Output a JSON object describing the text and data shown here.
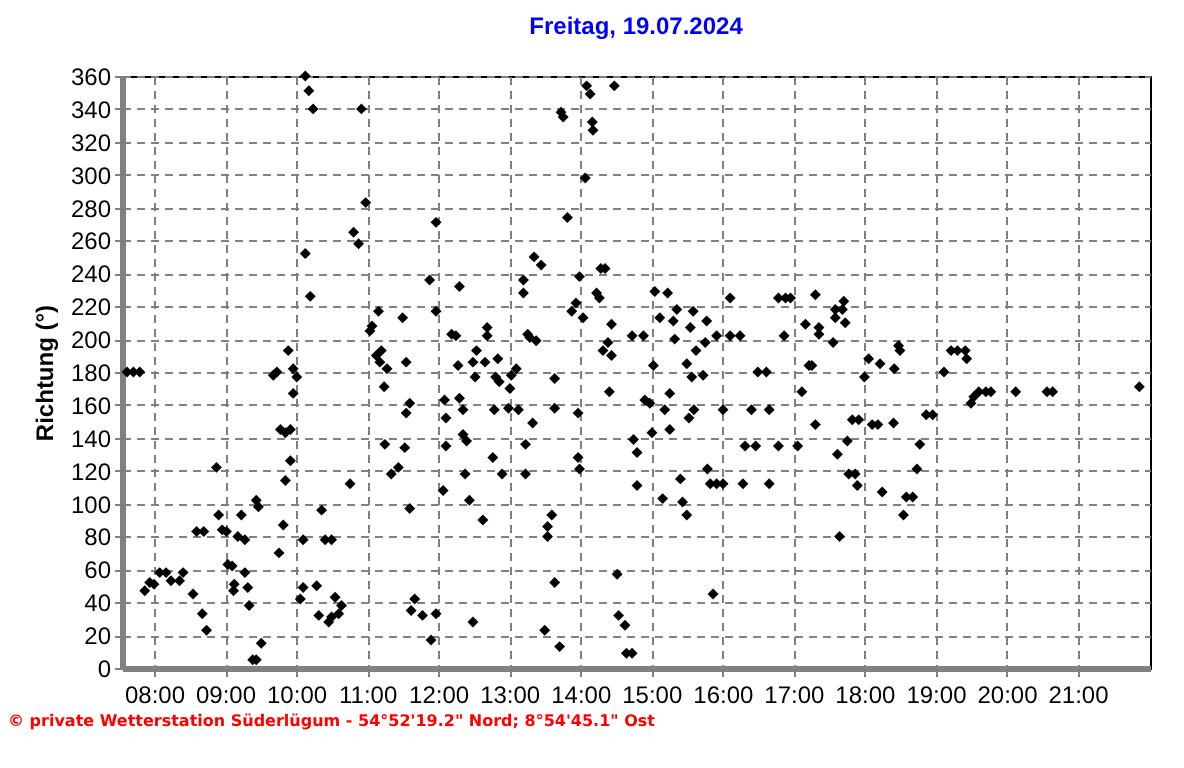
{
  "chart_data": {
    "type": "scatter",
    "title": "Freitag, 19.07.2024",
    "ylabel": "Richtung  (°)",
    "annotations": [
      "© private Wetterstation Süderlügum  -  54°52'19.2\" Nord; 8°54'45.1\" Ost"
    ],
    "marker": "diamond",
    "grid": true,
    "xlim": [
      7.55,
      22.02
    ],
    "ylim": [
      0,
      360
    ],
    "xticks": [
      {
        "value": 8,
        "label": "08:00"
      },
      {
        "value": 9,
        "label": "09:00"
      },
      {
        "value": 10,
        "label": "10:00"
      },
      {
        "value": 11,
        "label": "11:00"
      },
      {
        "value": 12,
        "label": "12:00"
      },
      {
        "value": 13,
        "label": "13:00"
      },
      {
        "value": 14,
        "label": "14:00"
      },
      {
        "value": 15,
        "label": "15:00"
      },
      {
        "value": 16,
        "label": "16:00"
      },
      {
        "value": 17,
        "label": "17:00"
      },
      {
        "value": 18,
        "label": "18:00"
      },
      {
        "value": 19,
        "label": "19:00"
      },
      {
        "value": 20,
        "label": "20:00"
      },
      {
        "value": 21,
        "label": "21:00"
      }
    ],
    "yticks": [
      0,
      20,
      40,
      60,
      80,
      100,
      120,
      140,
      160,
      180,
      200,
      220,
      240,
      260,
      280,
      300,
      320,
      340,
      360
    ],
    "series": [
      {
        "color": "#000000",
        "x": [
          7.62,
          7.71,
          7.8,
          7.87,
          7.94,
          8.0,
          8.08,
          8.17,
          8.24,
          8.36,
          8.41,
          8.55,
          8.6,
          8.7,
          8.68,
          8.74,
          8.88,
          8.91,
          8.96,
          9.02,
          9.04,
          9.1,
          9.12,
          9.13,
          9.18,
          9.23,
          9.28,
          9.28,
          9.32,
          9.34,
          9.39,
          9.44,
          9.44,
          9.47,
          9.51,
          9.68,
          9.73,
          9.76,
          9.78,
          9.85,
          9.82,
          9.85,
          9.89,
          9.92,
          9.92,
          9.96,
          9.96,
          10.01,
          10.06,
          10.1,
          10.1,
          10.13,
          10.18,
          10.13,
          10.2,
          10.24,
          10.29,
          10.32,
          10.36,
          10.41,
          10.5,
          10.46,
          10.5,
          10.55,
          10.6,
          10.64,
          10.76,
          10.81,
          10.88,
          10.92,
          10.98,
          11.04,
          11.07,
          11.13,
          11.16,
          11.18,
          11.2,
          11.28,
          11.24,
          11.25,
          11.34,
          11.44,
          11.53,
          11.55,
          11.6,
          11.5,
          11.55,
          11.6,
          11.67,
          11.62,
          11.78,
          11.97,
          11.9,
          11.88,
          11.97,
          11.97,
          12.09,
          12.11,
          12.11,
          12.07,
          12.19,
          12.25,
          12.3,
          12.28,
          12.3,
          12.35,
          12.35,
          12.4,
          12.38,
          12.44,
          12.49,
          12.49,
          12.54,
          12.52,
          12.63,
          12.66,
          12.69,
          12.69,
          12.77,
          12.79,
          12.81,
          12.84,
          12.86,
          12.9,
          12.99,
          13.01,
          13.03,
          13.1,
          13.13,
          13.2,
          13.2,
          13.23,
          13.23,
          13.26,
          13.29,
          13.33,
          13.35,
          13.38,
          13.45,
          13.5,
          13.54,
          13.54,
          13.6,
          13.64,
          13.64,
          13.64,
          13.71,
          13.73,
          13.76,
          13.82,
          13.88,
          13.94,
          13.97,
          13.97,
          13.99,
          13.99,
          14.04,
          14.07,
          14.09,
          14.14,
          14.17,
          14.18,
          14.23,
          14.27,
          14.29,
          14.35,
          14.32,
          14.39,
          14.41,
          14.44,
          14.44,
          14.48,
          14.52,
          14.54,
          14.63,
          14.65,
          14.73,
          14.73,
          14.8,
          14.75,
          14.8,
          14.89,
          14.91,
          14.98,
          15.03,
          15.01,
          15.05,
          15.12,
          15.16,
          15.19,
          15.23,
          15.26,
          15.26,
          15.31,
          15.33,
          15.36,
          15.41,
          15.44,
          15.5,
          15.5,
          15.53,
          15.55,
          15.57,
          15.59,
          15.6,
          15.63,
          15.73,
          15.76,
          15.78,
          15.79,
          15.83,
          15.87,
          15.92,
          15.92,
          16.01,
          16.01,
          16.11,
          16.11,
          16.25,
          16.29,
          16.32,
          16.41,
          16.47,
          16.5,
          16.62,
          16.66,
          16.66,
          16.79,
          16.79,
          16.87,
          16.89,
          16.96,
          17.06,
          17.12,
          17.17,
          17.22,
          17.26,
          17.31,
          17.31,
          17.36,
          17.36,
          17.56,
          17.59,
          17.59,
          17.62,
          17.65,
          17.69,
          17.71,
          17.73,
          17.76,
          17.78,
          17.83,
          17.87,
          17.92,
          17.9,
          18.0,
          18.06,
          18.11,
          18.19,
          18.22,
          18.25,
          18.41,
          18.42,
          18.48,
          18.5,
          18.55,
          18.59,
          18.68,
          18.74,
          18.78,
          18.87,
          18.96,
          19.12,
          19.22,
          19.31,
          19.42,
          19.44,
          19.5,
          19.54,
          19.61,
          19.71,
          19.78,
          20.13,
          20.57,
          20.65,
          21.87
        ],
        "values": [
          180,
          180,
          180,
          47,
          52,
          51,
          58,
          58,
          53,
          53,
          58,
          45,
          83,
          83,
          33,
          23,
          122,
          93,
          84,
          83,
          63,
          62,
          47,
          51,
          80,
          93,
          78,
          58,
          49,
          38,
          5,
          5,
          102,
          98,
          15,
          178,
          180,
          70,
          145,
          143,
          87,
          114,
          193,
          145,
          126,
          167,
          182,
          177,
          42,
          78,
          49,
          360,
          351,
          252,
          226,
          340,
          50,
          32,
          96,
          78,
          78,
          28,
          31,
          43,
          33,
          38,
          112,
          265,
          258,
          340,
          283,
          205,
          208,
          190,
          217,
          186,
          193,
          182,
          171,
          136,
          118,
          122,
          134,
          155,
          97,
          213,
          186,
          161,
          42,
          35,
          32,
          33,
          17,
          236,
          271,
          217,
          163,
          152,
          135,
          108,
          203,
          202,
          232,
          184,
          164,
          157,
          142,
          138,
          118,
          102,
          28,
          186,
          193,
          177,
          90,
          186,
          202,
          207,
          128,
          157,
          177,
          188,
          174,
          118,
          158,
          170,
          178,
          182,
          157,
          236,
          228,
          136,
          118,
          203,
          201,
          149,
          250,
          199,
          245,
          23,
          86,
          80,
          93,
          176,
          158,
          52,
          13,
          338,
          335,
          274,
          217,
          222,
          155,
          128,
          121,
          238,
          213,
          298,
          354,
          349,
          332,
          327,
          228,
          225,
          243,
          243,
          193,
          198,
          168,
          190,
          209,
          354,
          57,
          32,
          26,
          9,
          9,
          202,
          131,
          139,
          111,
          202,
          163,
          161,
          184,
          143,
          229,
          213,
          103,
          157,
          228,
          167,
          145,
          211,
          200,
          218,
          115,
          101,
          93,
          185,
          152,
          207,
          177,
          217,
          157,
          193,
          178,
          198,
          211,
          121,
          112,
          45,
          112,
          202,
          157,
          112,
          225,
          202,
          202,
          112,
          135,
          157,
          135,
          180,
          180,
          112,
          157,
          135,
          225,
          202,
          225,
          225,
          135,
          168,
          209,
          184,
          184,
          227,
          148,
          207,
          203,
          198,
          213,
          218,
          130,
          80,
          218,
          223,
          210,
          138,
          118,
          151,
          118,
          151,
          111,
          177,
          188,
          148,
          148,
          185,
          107,
          149,
          182,
          196,
          193,
          93,
          104,
          104,
          121,
          136,
          154,
          154,
          180,
          193,
          193,
          193,
          188,
          161,
          165,
          168,
          168,
          168,
          168,
          168,
          168,
          171
        ]
      }
    ]
  }
}
